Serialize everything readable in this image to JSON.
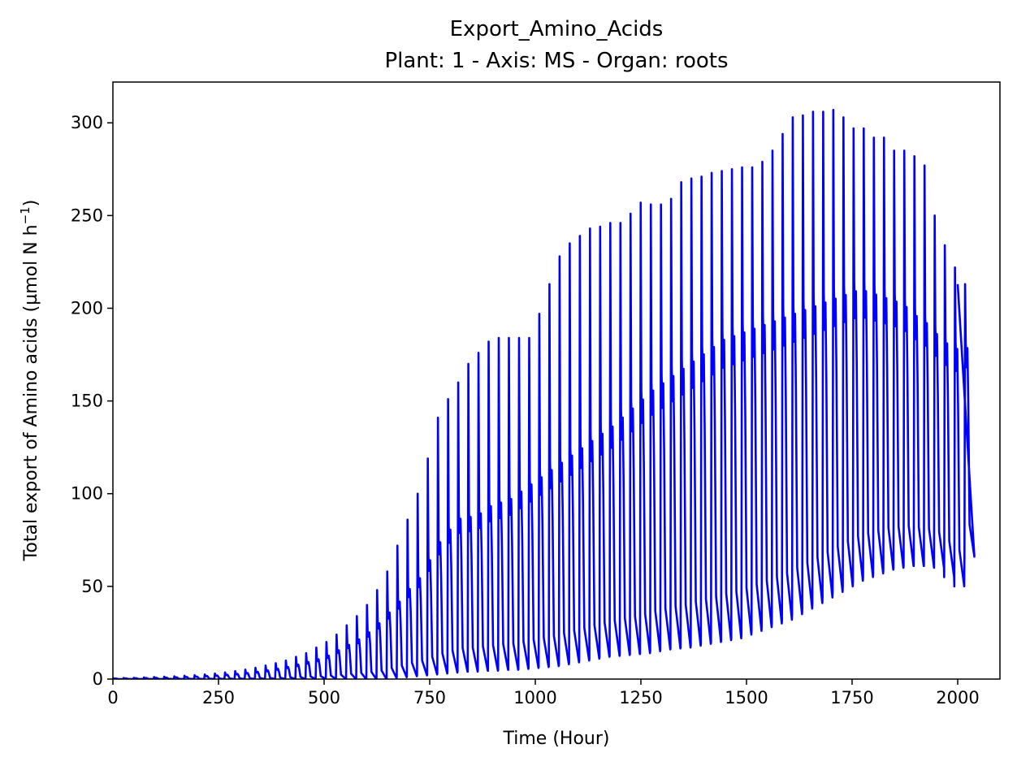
{
  "chart_data": {
    "type": "line",
    "title": "Export_Amino_Acids",
    "subtitle": "Plant: 1 - Axis: MS - Organ: roots",
    "xlabel": "Time (Hour)",
    "ylabel_main": "Total export of Amino acids (µmol N h",
    "ylabel_sup": "−1",
    "ylabel_end": ")",
    "xlim": [
      0,
      2100
    ],
    "ylim": [
      0,
      322
    ],
    "x_ticks": [
      0,
      250,
      500,
      750,
      1000,
      1250,
      1500,
      1750,
      2000
    ],
    "y_ticks": [
      0,
      50,
      100,
      150,
      200,
      250,
      300
    ],
    "grid": false,
    "line_color": "#0000ff",
    "series": [
      {
        "cycle_period_hours": 24,
        "x_end": 2000,
        "peak_values": [
          0.5,
          0.6,
          0.7,
          0.9,
          1.1,
          1.3,
          1.5,
          1.8,
          2.1,
          2.5,
          3,
          3.6,
          4.3,
          5.1,
          6.1,
          7.3,
          8.6,
          10,
          12,
          14,
          17,
          20,
          24,
          29,
          34,
          40,
          48,
          58,
          72,
          86,
          100,
          119,
          141,
          151,
          160,
          170,
          176,
          182,
          184,
          184,
          184,
          184,
          197,
          213,
          228,
          235,
          239,
          243,
          244,
          246,
          246,
          251,
          257,
          256,
          256,
          259,
          268,
          270,
          271,
          273,
          274,
          275,
          276,
          276,
          279,
          285,
          294,
          303,
          304,
          306,
          306,
          307,
          303,
          297,
          297,
          292,
          292,
          285,
          285,
          282,
          277,
          250,
          234,
          222,
          213
        ],
        "trough_values": [
          0,
          0,
          0,
          0,
          0,
          0,
          0,
          0,
          0,
          0,
          0,
          0,
          0,
          0,
          0,
          0,
          0,
          0,
          0,
          0,
          0,
          0,
          0,
          0,
          0,
          0,
          0,
          0.5,
          1,
          1.5,
          2,
          2.5,
          3,
          3.5,
          4,
          4,
          4.5,
          4.5,
          5,
          5,
          5.5,
          6,
          6.5,
          7,
          8,
          9,
          10,
          11,
          12,
          12.5,
          13,
          13.5,
          14,
          15,
          16,
          16.5,
          17,
          18,
          19,
          20,
          21,
          22,
          24,
          26,
          28,
          30,
          32,
          35,
          38,
          41,
          44,
          47,
          50,
          53,
          55,
          57,
          59,
          60,
          61,
          61,
          61,
          60,
          55,
          50,
          66
        ],
        "shoulder_values": [
          0.3,
          0.4,
          0.5,
          0.6,
          0.7,
          0.8,
          1,
          1.2,
          1.4,
          1.7,
          2,
          2.4,
          2.9,
          3.4,
          4,
          4.8,
          5.7,
          6.7,
          8,
          9.5,
          11,
          13,
          16,
          19,
          22,
          26,
          31,
          37,
          43,
          50,
          56,
          66,
          76,
          83,
          89,
          90,
          92,
          96,
          98,
          100,
          104,
          108,
          112,
          116,
          120,
          124,
          128,
          132,
          136,
          140,
          145,
          150,
          155,
          160,
          164,
          168,
          172,
          176,
          180,
          184,
          188,
          190,
          192,
          194,
          196,
          198,
          200,
          202,
          204,
          206,
          208,
          210,
          212,
          214,
          214,
          212,
          210,
          208,
          205,
          200,
          196,
          190,
          185,
          182,
          182
        ]
      }
    ]
  }
}
